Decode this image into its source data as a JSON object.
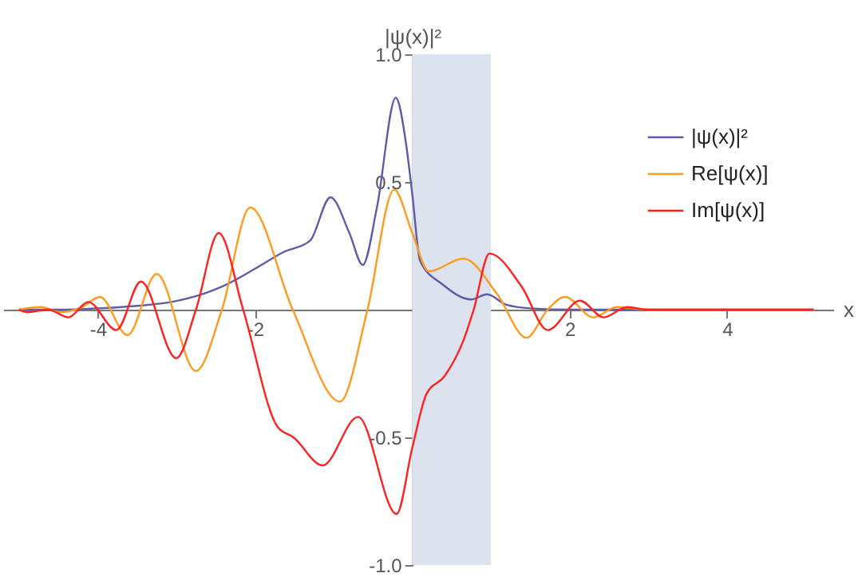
{
  "chart_data": {
    "type": "line",
    "xlabel": "x",
    "ylabel": "|ψ(x)|²",
    "xlim": [
      -5.2,
      5.35
    ],
    "ylim": [
      -1.0,
      1.0
    ],
    "xticks": [
      -4,
      -2,
      2,
      4
    ],
    "yticks": [
      {
        "value": -1.0,
        "label": "-1.0"
      },
      {
        "value": -0.5,
        "label": "-0.5"
      },
      {
        "value": 0.5,
        "label": "0.5"
      },
      {
        "value": 1.0,
        "label": "1.0"
      }
    ],
    "legend": "top right",
    "bands": [
      {
        "axis": "x",
        "from": 0,
        "to": 1,
        "color": "#dde3ee"
      }
    ],
    "series": [
      {
        "name": "|ψ(x)|²",
        "color": "#5c5caa",
        "x": [
          -5.0,
          -4.5,
          -4.0,
          -3.5,
          -3.06,
          -2.42,
          -2.0,
          -1.64,
          -1.3,
          -1.04,
          -0.8,
          -0.63,
          -0.45,
          -0.21,
          -0.08,
          0.0,
          0.1,
          0.38,
          0.75,
          0.95,
          1.19,
          1.5,
          2.0,
          3.0,
          4.0,
          5.1
        ],
        "values": [
          0.0,
          0.0,
          0.005,
          0.015,
          0.03,
          0.09,
          0.16,
          0.225,
          0.27,
          0.44,
          0.3,
          0.175,
          0.4,
          0.83,
          0.65,
          0.45,
          0.19,
          0.1,
          0.04,
          0.06,
          0.02,
          0.005,
          0.0,
          0.0,
          0.0,
          0.0
        ]
      },
      {
        "name": "Re[ψ(x)]",
        "color": "#ff9a1e",
        "x": [
          -5.0,
          -4.72,
          -4.47,
          -4.2,
          -3.97,
          -3.62,
          -3.25,
          -2.75,
          -2.42,
          -2.06,
          -1.52,
          -0.92,
          -0.57,
          -0.23,
          0.0,
          0.21,
          0.65,
          1.08,
          1.45,
          1.72,
          1.94,
          2.3,
          2.6,
          3.0,
          4.0,
          5.1
        ],
        "values": [
          0.0,
          0.01,
          -0.01,
          0.01,
          0.05,
          -0.1,
          0.14,
          -0.24,
          0.0,
          0.4,
          0.0,
          -0.36,
          0.0,
          0.47,
          0.3,
          0.15,
          0.2,
          0.06,
          -0.11,
          0.0,
          0.05,
          -0.03,
          0.01,
          0.0,
          0.0,
          0.0
        ]
      },
      {
        "name": "Im[ψ(x)]",
        "color": "#ff2020",
        "x": [
          -5.0,
          -4.9,
          -4.63,
          -4.37,
          -4.12,
          -3.76,
          -3.45,
          -3.0,
          -2.75,
          -2.46,
          -2.15,
          -1.71,
          -1.51,
          -1.14,
          -0.69,
          -0.2,
          0.0,
          0.18,
          0.41,
          0.65,
          0.78,
          0.98,
          1.39,
          1.72,
          2.13,
          2.43,
          2.73,
          3.0,
          4.0,
          5.1
        ],
        "values": [
          0.0,
          -0.01,
          0.0,
          -0.03,
          0.03,
          -0.08,
          0.11,
          -0.19,
          0.0,
          0.3,
          0.0,
          -0.46,
          -0.5,
          -0.61,
          -0.42,
          -0.8,
          -0.54,
          -0.33,
          -0.26,
          -0.12,
          0.0,
          0.22,
          0.09,
          -0.08,
          0.035,
          -0.03,
          0.01,
          0.0,
          0.0,
          0.0
        ]
      }
    ]
  }
}
